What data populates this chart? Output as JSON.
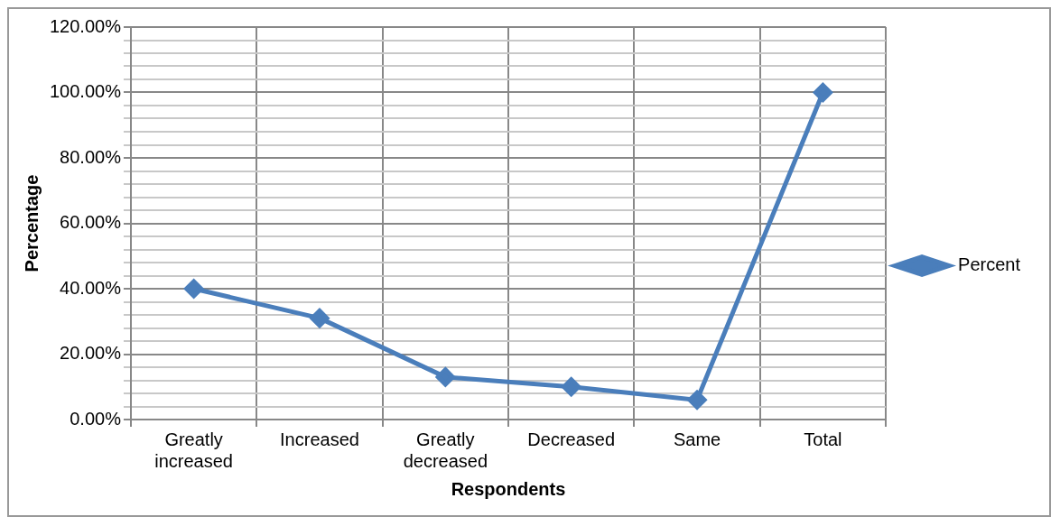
{
  "chart_data": {
    "type": "line",
    "xlabel": "Respondents",
    "ylabel": "Percentage",
    "categories": [
      [
        "Greatly",
        "increased"
      ],
      "Increased",
      [
        "Greatly",
        "decreased"
      ],
      "Decreased",
      "Same",
      "Total"
    ],
    "series": [
      {
        "name": "Percent",
        "color": "#4a7ebb",
        "values": [
          40,
          31,
          13,
          10,
          6,
          100
        ]
      }
    ],
    "ylim": [
      0,
      120
    ],
    "yticks": [
      {
        "value": 0,
        "label": "0.00%"
      },
      {
        "value": 4,
        "label": null
      },
      {
        "value": 8,
        "label": null
      },
      {
        "value": 12,
        "label": null
      },
      {
        "value": 16,
        "label": null
      },
      {
        "value": 20,
        "label": "20.00%"
      },
      {
        "value": 24,
        "label": null
      },
      {
        "value": 28,
        "label": null
      },
      {
        "value": 32,
        "label": null
      },
      {
        "value": 36,
        "label": null
      },
      {
        "value": 40,
        "label": "40.00%"
      },
      {
        "value": 44,
        "label": null
      },
      {
        "value": 48,
        "label": null
      },
      {
        "value": 52,
        "label": null
      },
      {
        "value": 56,
        "label": null
      },
      {
        "value": 60,
        "label": "60.00%"
      },
      {
        "value": 64,
        "label": null
      },
      {
        "value": 68,
        "label": null
      },
      {
        "value": 72,
        "label": null
      },
      {
        "value": 76,
        "label": null
      },
      {
        "value": 80,
        "label": "80.00%"
      },
      {
        "value": 84,
        "label": null
      },
      {
        "value": 88,
        "label": null
      },
      {
        "value": 92,
        "label": null
      },
      {
        "value": 96,
        "label": null
      },
      {
        "value": 100,
        "label": "100.00%"
      },
      {
        "value": 104,
        "label": null
      },
      {
        "value": 108,
        "label": null
      },
      {
        "value": 112,
        "label": null
      },
      {
        "value": 116,
        "label": null
      },
      {
        "value": 120,
        "label": "120.00%"
      }
    ],
    "grid": true,
    "legend": "right",
    "marker": "diamond",
    "line_style": "solid"
  }
}
